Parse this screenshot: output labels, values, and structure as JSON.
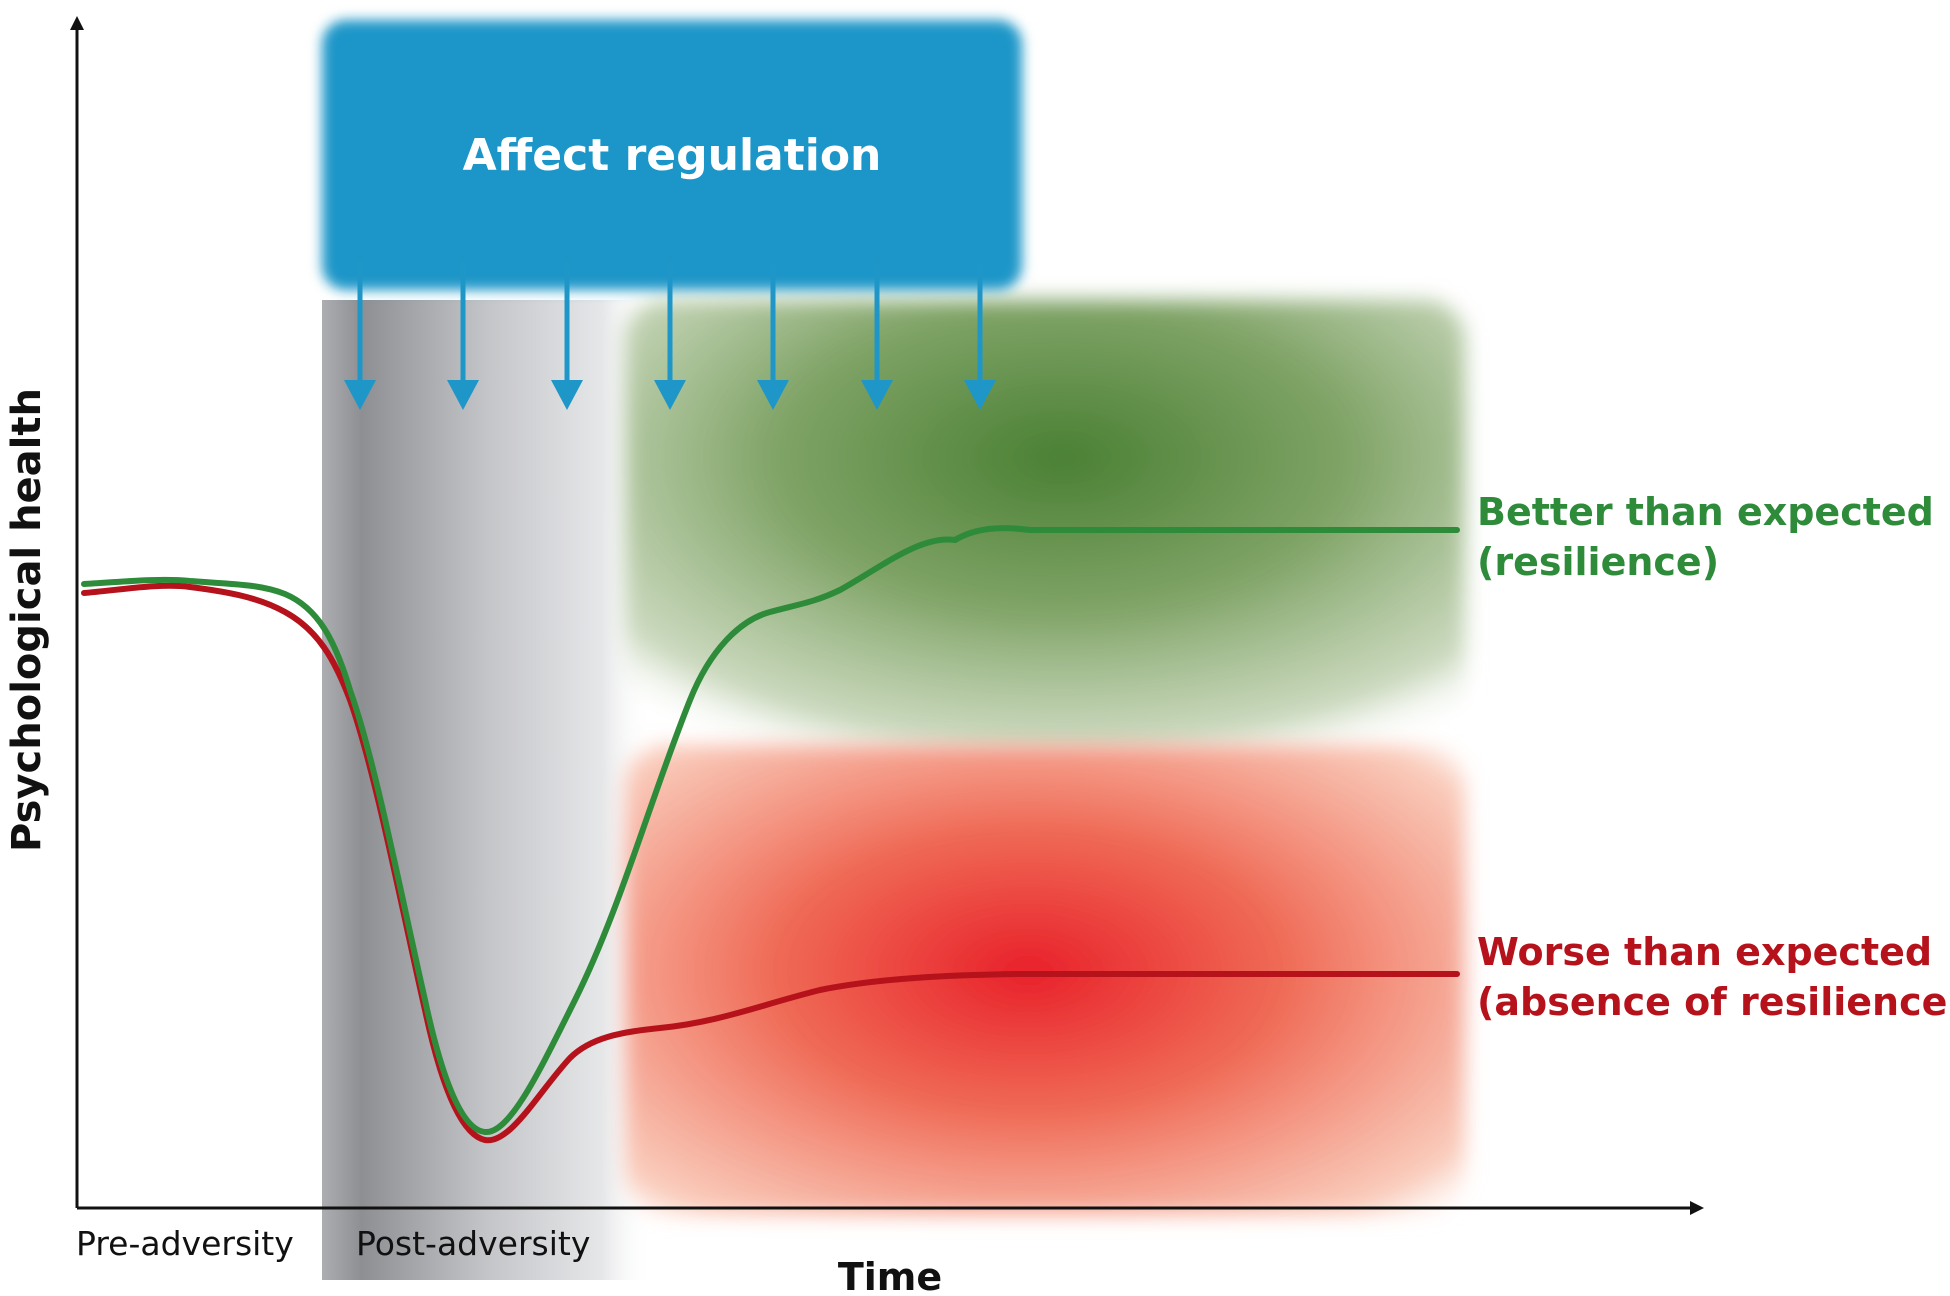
{
  "axes": {
    "y_label": "Psychological health",
    "x_label": "Time"
  },
  "phases": {
    "pre": "Pre-adversity",
    "post": "Post-adversity"
  },
  "regulation_box": {
    "title": "Affect regulation",
    "color": "#1e96c8"
  },
  "outcomes": {
    "better": {
      "line1": "Better than expected",
      "line2": "(resilience)",
      "color": "#2e8b3a"
    },
    "worse": {
      "line1": "Worse than expected",
      "line2": "(absence of resilience)",
      "color": "#b5121b"
    }
  }
}
